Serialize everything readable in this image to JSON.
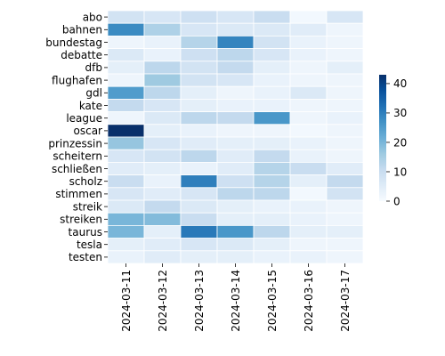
{
  "chart_data": {
    "type": "heatmap",
    "title": "",
    "xlabel": "",
    "ylabel": "",
    "x_categories": [
      "2024-03-11",
      "2024-03-12",
      "2024-03-13",
      "2024-03-14",
      "2024-03-15",
      "2024-03-16",
      "2024-03-17"
    ],
    "y_categories": [
      "abo",
      "bahnen",
      "bundestag",
      "debatte",
      "dfb",
      "flughafen",
      "gdl",
      "kate",
      "league",
      "oscar",
      "prinzessin",
      "scheitern",
      "schließen",
      "scholz",
      "stimmen",
      "streik",
      "streiken",
      "taurus",
      "tesla",
      "testen"
    ],
    "values": [
      [
        8,
        7,
        9,
        7,
        10,
        1,
        7
      ],
      [
        28,
        14,
        7,
        6,
        6,
        5,
        2
      ],
      [
        2,
        3,
        13,
        29,
        8,
        3,
        2
      ],
      [
        6,
        3,
        9,
        12,
        7,
        3,
        2
      ],
      [
        4,
        12,
        8,
        11,
        4,
        2,
        4
      ],
      [
        2,
        16,
        8,
        7,
        3,
        2,
        2
      ],
      [
        25,
        12,
        4,
        2,
        3,
        6,
        2
      ],
      [
        11,
        7,
        4,
        3,
        3,
        2,
        2
      ],
      [
        2,
        6,
        12,
        11,
        26,
        2,
        3
      ],
      [
        43,
        4,
        3,
        2,
        2,
        1,
        2
      ],
      [
        17,
        7,
        5,
        4,
        4,
        3,
        2
      ],
      [
        7,
        8,
        12,
        5,
        11,
        3,
        2
      ],
      [
        5,
        4,
        3,
        5,
        13,
        10,
        5
      ],
      [
        10,
        3,
        30,
        9,
        13,
        4,
        11
      ],
      [
        7,
        5,
        7,
        12,
        12,
        1,
        8
      ],
      [
        6,
        11,
        6,
        4,
        3,
        3,
        2
      ],
      [
        20,
        19,
        10,
        4,
        4,
        3,
        2
      ],
      [
        20,
        4,
        31,
        26,
        12,
        4,
        4
      ],
      [
        4,
        5,
        7,
        6,
        4,
        2,
        2
      ],
      [
        3,
        5,
        4,
        4,
        3,
        3,
        2
      ]
    ],
    "colorbar": {
      "min": 0,
      "max": 43,
      "ticks": [
        0,
        10,
        20,
        30,
        40
      ]
    },
    "colormap": [
      "#f7fbff",
      "#deebf7",
      "#c6dbef",
      "#9ecae1",
      "#6baed6",
      "#4292c6",
      "#2171b5",
      "#08519c",
      "#08306b"
    ],
    "grid_line_color": "#ffffff"
  }
}
